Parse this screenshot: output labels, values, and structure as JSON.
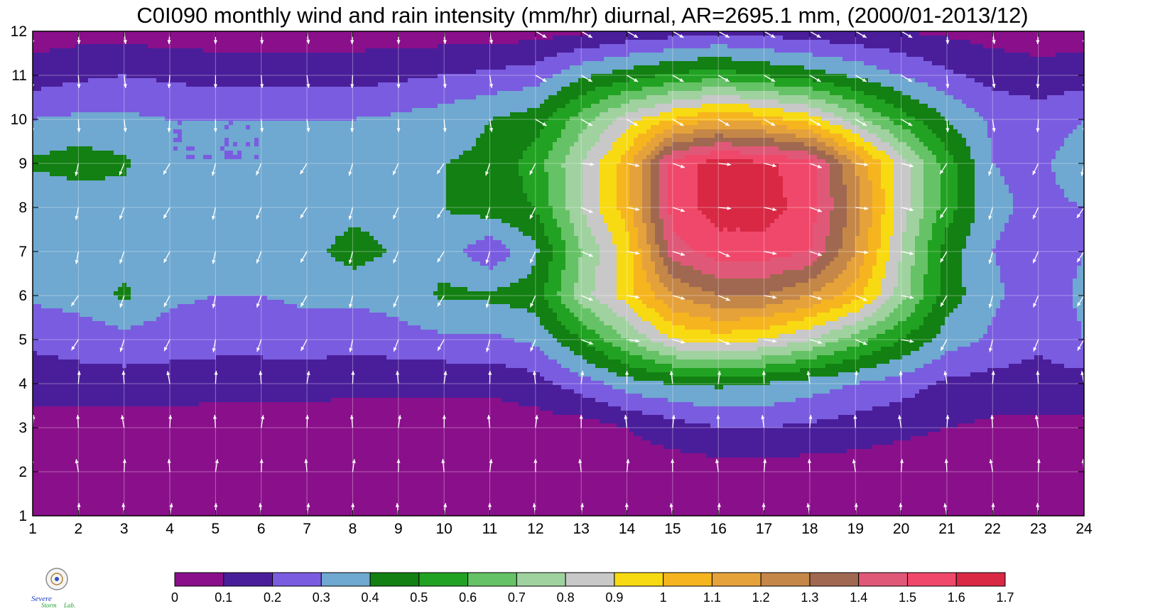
{
  "title": "C0I090 monthly wind and rain intensity (mm/hr) diurnal, AR=2695.1 mm, (2000/01-2013/12)",
  "logo_text": "Severe Storm Lab.",
  "chart_data": {
    "type": "heatmap",
    "title": "C0I090 monthly wind and rain intensity (mm/hr) diurnal, AR=2695.1 mm, (2000/01-2013/12)",
    "xlabel": "",
    "ylabel": "",
    "x_ticks": [
      1,
      2,
      3,
      4,
      5,
      6,
      7,
      8,
      9,
      10,
      11,
      12,
      13,
      14,
      15,
      16,
      17,
      18,
      19,
      20,
      21,
      22,
      23,
      24
    ],
    "y_ticks": [
      1,
      2,
      3,
      4,
      5,
      6,
      7,
      8,
      9,
      10,
      11,
      12
    ],
    "xlim": [
      1,
      24
    ],
    "ylim": [
      1,
      12
    ],
    "grid": true,
    "colorbar": {
      "levels": [
        0,
        0.1,
        0.2,
        0.3,
        0.4,
        0.5,
        0.6,
        0.7,
        0.8,
        0.9,
        1,
        1.1,
        1.2,
        1.3,
        1.4,
        1.5,
        1.6,
        1.7
      ],
      "tick_labels": [
        "0",
        "0.1",
        "0.2",
        "0.3",
        "0.4",
        "0.5",
        "0.6",
        "0.7",
        "0.8",
        "0.9",
        "1",
        "1.1",
        "1.2",
        "1.3",
        "1.4",
        "1.5",
        "1.6",
        "1.7"
      ],
      "colors": [
        "#8a0f8a",
        "#4a1e9a",
        "#7a5ce0",
        "#6fa8d0",
        "#128012",
        "#22a222",
        "#66c266",
        "#9fd29f",
        "#c8c8c8",
        "#f8da12",
        "#f6b51e",
        "#e6a23a",
        "#c48748",
        "#a06850",
        "#e05878",
        "#f0486a",
        "#d82844"
      ]
    },
    "rain_intensity": [
      [
        0.05,
        0.05,
        0.05,
        0.05,
        0.05,
        0.05,
        0.05,
        0.05,
        0.05,
        0.05,
        0.05,
        0.05,
        0.05,
        0.05,
        0.05,
        0.05,
        0.05,
        0.05,
        0.05,
        0.05,
        0.05,
        0.05,
        0.05,
        0.05
      ],
      [
        0.05,
        0.05,
        0.05,
        0.05,
        0.05,
        0.05,
        0.05,
        0.05,
        0.05,
        0.05,
        0.05,
        0.05,
        0.05,
        0.05,
        0.05,
        0.05,
        0.05,
        0.05,
        0.05,
        0.05,
        0.05,
        0.05,
        0.05,
        0.05
      ],
      [
        0.05,
        0.05,
        0.05,
        0.05,
        0.05,
        0.05,
        0.05,
        0.05,
        0.05,
        0.05,
        0.05,
        0.05,
        0.05,
        0.1,
        0.15,
        0.2,
        0.2,
        0.18,
        0.15,
        0.12,
        0.1,
        0.08,
        0.08,
        0.08
      ],
      [
        0.15,
        0.16,
        0.16,
        0.15,
        0.14,
        0.14,
        0.14,
        0.12,
        0.12,
        0.12,
        0.12,
        0.16,
        0.25,
        0.35,
        0.4,
        0.42,
        0.4,
        0.35,
        0.3,
        0.25,
        0.18,
        0.16,
        0.16,
        0.15
      ],
      [
        0.22,
        0.24,
        0.26,
        0.25,
        0.24,
        0.24,
        0.25,
        0.24,
        0.26,
        0.28,
        0.28,
        0.32,
        0.5,
        0.7,
        0.9,
        0.95,
        0.9,
        0.8,
        0.65,
        0.5,
        0.35,
        0.28,
        0.22,
        0.3
      ],
      [
        0.32,
        0.34,
        0.42,
        0.32,
        0.3,
        0.3,
        0.32,
        0.32,
        0.34,
        0.42,
        0.42,
        0.45,
        0.75,
        0.95,
        1.2,
        1.3,
        1.3,
        1.2,
        1.05,
        0.75,
        0.45,
        0.32,
        0.25,
        0.32
      ],
      [
        0.35,
        0.35,
        0.35,
        0.34,
        0.34,
        0.34,
        0.36,
        0.45,
        0.38,
        0.36,
        0.22,
        0.38,
        0.7,
        0.95,
        1.45,
        1.55,
        1.55,
        1.5,
        1.2,
        0.8,
        0.45,
        0.3,
        0.25,
        0.3
      ],
      [
        0.3,
        0.32,
        0.35,
        0.34,
        0.33,
        0.33,
        0.35,
        0.36,
        0.36,
        0.4,
        0.45,
        0.5,
        0.8,
        1.05,
        1.55,
        1.65,
        1.65,
        1.55,
        1.25,
        0.85,
        0.55,
        0.32,
        0.28,
        0.3
      ],
      [
        0.42,
        0.45,
        0.42,
        0.3,
        0.3,
        0.3,
        0.32,
        0.32,
        0.32,
        0.4,
        0.42,
        0.55,
        0.8,
        1.05,
        1.55,
        1.65,
        1.62,
        1.55,
        1.2,
        0.85,
        0.55,
        0.3,
        0.28,
        0.35
      ],
      [
        0.3,
        0.32,
        0.32,
        0.3,
        0.3,
        0.3,
        0.3,
        0.3,
        0.32,
        0.35,
        0.4,
        0.45,
        0.65,
        0.85,
        1.0,
        1.1,
        1.05,
        0.95,
        0.75,
        0.55,
        0.4,
        0.28,
        0.25,
        0.3
      ],
      [
        0.15,
        0.18,
        0.2,
        0.18,
        0.16,
        0.16,
        0.16,
        0.16,
        0.18,
        0.2,
        0.22,
        0.25,
        0.38,
        0.45,
        0.52,
        0.55,
        0.5,
        0.45,
        0.38,
        0.3,
        0.22,
        0.16,
        0.14,
        0.15
      ],
      [
        0.05,
        0.06,
        0.06,
        0.05,
        0.05,
        0.05,
        0.05,
        0.05,
        0.05,
        0.05,
        0.05,
        0.06,
        0.08,
        0.12,
        0.15,
        0.18,
        0.16,
        0.14,
        0.12,
        0.1,
        0.08,
        0.06,
        0.05,
        0.05
      ]
    ],
    "wind_vectors": "white arrows at every grid node"
  }
}
